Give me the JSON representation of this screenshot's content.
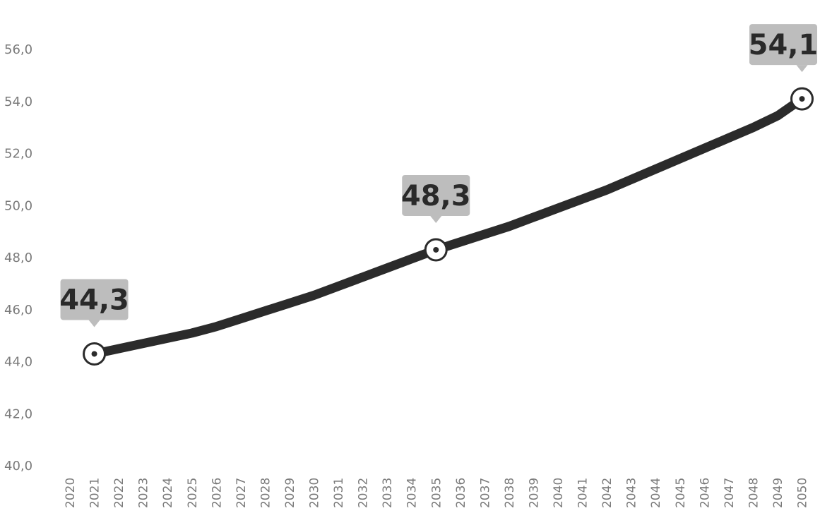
{
  "chart_data": {
    "type": "line",
    "title": "",
    "xlabel": "",
    "ylabel": "",
    "x": [
      "2020",
      "2021",
      "2022",
      "2023",
      "2024",
      "2025",
      "2026",
      "2027",
      "2028",
      "2029",
      "2030",
      "2031",
      "2032",
      "2033",
      "2034",
      "2035",
      "2036",
      "2037",
      "2038",
      "2039",
      "2040",
      "2041",
      "2042",
      "2043",
      "2044",
      "2045",
      "2046",
      "2047",
      "2048",
      "2049",
      "2050"
    ],
    "y_ticks": [
      "40,0",
      "42,0",
      "44,0",
      "46,0",
      "48,0",
      "50,0",
      "52,0",
      "54,0",
      "56,0"
    ],
    "ylim": [
      40,
      56
    ],
    "grid": false,
    "legend": "none",
    "series": [
      {
        "color": "#2b2b2b",
        "points": [
          {
            "x": "2021",
            "y": 44.3
          },
          {
            "x": "2022",
            "y": 44.5
          },
          {
            "x": "2023",
            "y": 44.7
          },
          {
            "x": "2024",
            "y": 44.9
          },
          {
            "x": "2025",
            "y": 45.1
          },
          {
            "x": "2026",
            "y": 45.35
          },
          {
            "x": "2027",
            "y": 45.65
          },
          {
            "x": "2028",
            "y": 45.95
          },
          {
            "x": "2029",
            "y": 46.25
          },
          {
            "x": "2030",
            "y": 46.55
          },
          {
            "x": "2031",
            "y": 46.9
          },
          {
            "x": "2032",
            "y": 47.25
          },
          {
            "x": "2033",
            "y": 47.6
          },
          {
            "x": "2034",
            "y": 47.95
          },
          {
            "x": "2035",
            "y": 48.3
          },
          {
            "x": "2036",
            "y": 48.6
          },
          {
            "x": "2037",
            "y": 48.9
          },
          {
            "x": "2038",
            "y": 49.2
          },
          {
            "x": "2039",
            "y": 49.55
          },
          {
            "x": "2040",
            "y": 49.9
          },
          {
            "x": "2041",
            "y": 50.25
          },
          {
            "x": "2042",
            "y": 50.6
          },
          {
            "x": "2043",
            "y": 51.0
          },
          {
            "x": "2044",
            "y": 51.4
          },
          {
            "x": "2045",
            "y": 51.8
          },
          {
            "x": "2046",
            "y": 52.2
          },
          {
            "x": "2047",
            "y": 52.6
          },
          {
            "x": "2048",
            "y": 53.0
          },
          {
            "x": "2049",
            "y": 53.45
          },
          {
            "x": "2050",
            "y": 54.1
          }
        ]
      }
    ],
    "annotations": [
      {
        "x": "2021",
        "y": 44.3,
        "text": "44,3"
      },
      {
        "x": "2035",
        "y": 48.3,
        "text": "48,3"
      },
      {
        "x": "2050",
        "y": 54.1,
        "text": "54,1"
      }
    ]
  }
}
